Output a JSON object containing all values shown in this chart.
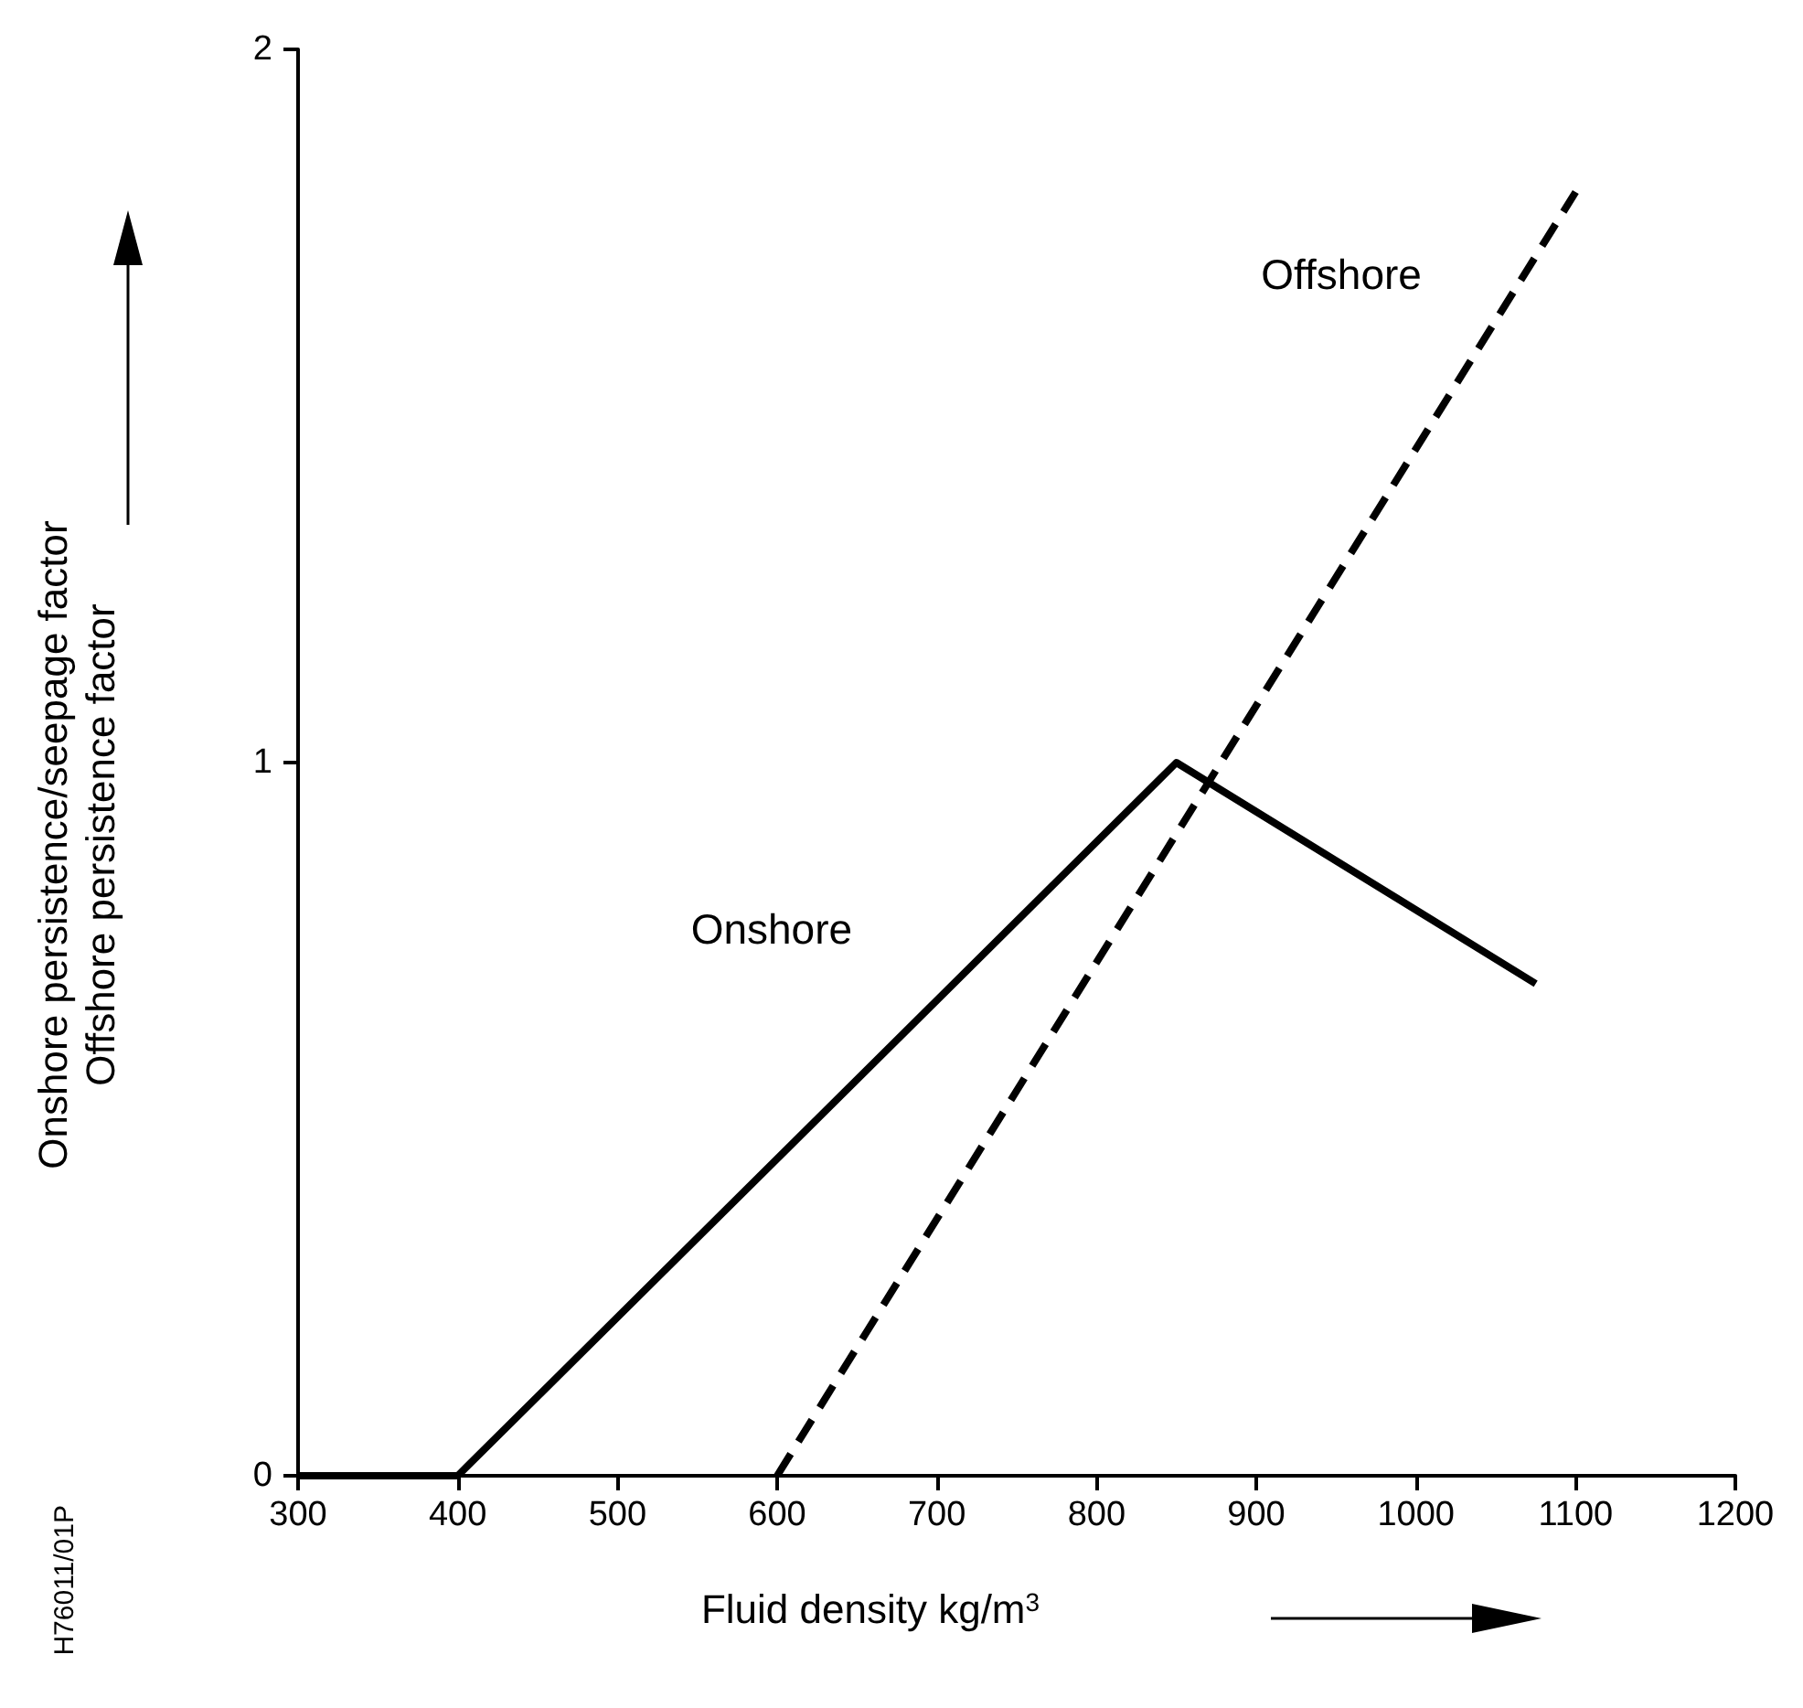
{
  "chart_data": {
    "type": "line",
    "xlabel": "Fluid density kg/m$^{3}$",
    "ylabel": "Onshore persistence/seepage factor\nOffshore persistence factor",
    "annotations": [
      "H76011/01P"
    ],
    "xlim": [
      300,
      1200
    ],
    "xticks": [
      300,
      400,
      500,
      600,
      700,
      800,
      900,
      1000,
      1100,
      1200
    ],
    "ylim": [
      0,
      2
    ],
    "yticks": [
      0,
      1,
      2
    ],
    "grid": false,
    "legend": false,
    "marker": "none",
    "series": [
      {
        "name": "Onshore",
        "color": "#000000",
        "line_style": "solid",
        "x": [
          300,
          400,
          850,
          1075
        ],
        "values": [
          0,
          0,
          1,
          0.69
        ]
      },
      {
        "name": "Offshore",
        "color": "#000000",
        "line_style": "dashed",
        "x": [
          600,
          1100
        ],
        "values": [
          0,
          1.8
        ]
      }
    ]
  }
}
